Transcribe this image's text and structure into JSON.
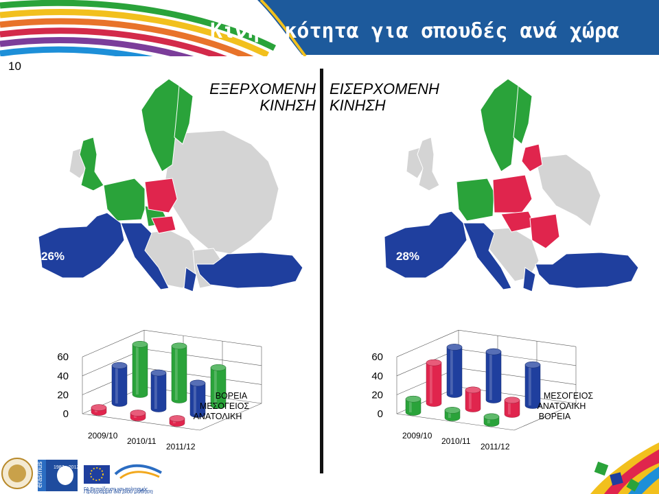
{
  "slide": {
    "number": "10",
    "title": "Κινητικότητα για σπουδές ανά χώρα"
  },
  "panels": {
    "outgoing": {
      "label_line1": "ΕΞΕΡΧΟΜΕΝΗ",
      "label_line2": "ΚΙΝΗΣΗ",
      "percent": "26%"
    },
    "incoming": {
      "label_line1": "ΕΙΣΕΡΧΟΜΕΝΗ",
      "label_line2": "ΚΙΝΗΣΗ",
      "percent": "28%"
    }
  },
  "colors": {
    "north": "#2aa33a",
    "mediterranean": "#1f3f9e",
    "east": "#e0254d",
    "neutral": "#d4d4d4",
    "header_blue": "#1d5a9c"
  },
  "chart_data": [
    {
      "type": "bar",
      "categories": [
        "2009/10",
        "2010/11",
        "2011/12"
      ],
      "ylim": [
        0,
        60
      ],
      "yticks": [
        "0",
        "20",
        "40",
        "60"
      ],
      "series": [
        {
          "name": "ΒΟΡΕΙΑ",
          "values": [
            53,
            57,
            40
          ]
        },
        {
          "name": "ΜΕΣΟΓΕΙΟΣ",
          "values": [
            40,
            38,
            33
          ]
        },
        {
          "name": "ΑΝΑΤΟΛΙΚΗ",
          "values": [
            5,
            5,
            5
          ]
        }
      ]
    },
    {
      "type": "bar",
      "categories": [
        "2009/10",
        "2010/11",
        "2011/12"
      ],
      "ylim": [
        0,
        60
      ],
      "yticks": [
        "0",
        "20",
        "40",
        "60"
      ],
      "series": [
        {
          "name": "ΜΕΣΟΓΕΙΟΣ",
          "values": [
            50,
            51,
            43
          ]
        },
        {
          "name": "ΑΝΑΤΟΛΙΚΗ",
          "values": [
            43,
            20,
            15
          ]
        },
        {
          "name": "ΒΟΡΕΙΑ",
          "values": [
            14,
            8,
            7
          ]
        }
      ]
    }
  ],
  "footer": {
    "erasmus": "erasmus",
    "years": "1987 - 2012",
    "ministry": "ΓΔ Εκπαίδευση και πολιτισμός",
    "programme": "Πρόγραμμα διά βίου μάθηση"
  }
}
